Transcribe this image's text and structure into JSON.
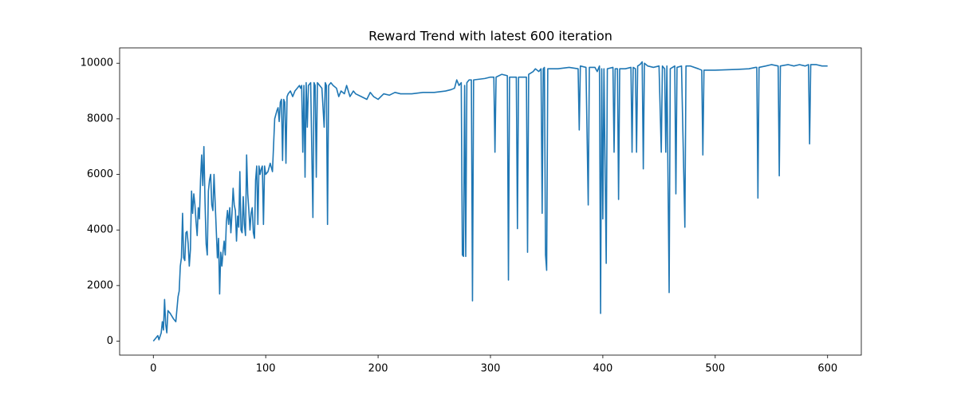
{
  "chart_data": {
    "type": "line",
    "title": "Reward Trend with latest 600 iteration",
    "xlim": [
      -30,
      630
    ],
    "ylim": [
      -502,
      10552
    ],
    "xticks": [
      0,
      100,
      200,
      300,
      400,
      500,
      600
    ],
    "yticks": [
      0,
      2000,
      4000,
      6000,
      8000,
      10000
    ],
    "grid": false,
    "series": [
      {
        "color": "#1f77b4",
        "x": [
          0,
          2,
          4,
          5,
          7,
          8,
          9,
          10,
          11,
          12,
          13,
          15,
          18,
          20,
          22,
          23,
          24,
          25,
          26,
          27,
          28,
          29,
          30,
          31,
          32,
          33,
          34,
          35,
          36,
          37,
          38,
          39,
          40,
          41,
          42,
          43,
          44,
          45,
          46,
          47,
          48,
          49,
          50,
          51,
          52,
          53,
          54,
          55,
          56,
          57,
          58,
          59,
          60,
          61,
          62,
          63,
          64,
          65,
          66,
          67,
          68,
          69,
          70,
          71,
          72,
          73,
          74,
          75,
          76,
          77,
          78,
          79,
          80,
          81,
          82,
          83,
          84,
          85,
          86,
          87,
          88,
          89,
          90,
          91,
          92,
          93,
          94,
          95,
          96,
          97,
          98,
          99,
          100,
          102,
          104,
          106,
          108,
          110,
          111,
          112,
          113,
          114,
          115,
          116,
          117,
          118,
          119,
          120,
          122,
          124,
          126,
          128,
          130,
          131,
          132,
          133,
          134,
          135,
          136,
          137,
          138,
          140,
          142,
          143,
          144,
          145,
          146,
          148,
          150,
          152,
          153,
          154,
          155,
          156,
          158,
          160,
          163,
          165,
          167,
          170,
          172,
          175,
          178,
          180,
          185,
          190,
          193,
          196,
          200,
          205,
          210,
          215,
          220,
          230,
          240,
          250,
          260,
          265,
          268,
          270,
          272,
          274,
          275,
          276,
          277,
          278,
          279,
          281,
          283,
          284,
          285,
          295,
          300,
          303,
          304,
          305,
          310,
          315,
          316,
          317,
          323,
          324,
          325,
          332,
          333,
          334,
          338,
          340,
          343,
          345,
          346,
          347,
          348,
          349,
          350,
          351,
          355,
          360,
          370,
          378,
          379,
          380,
          385,
          387,
          388,
          393,
          395,
          397,
          398,
          399,
          400,
          401,
          403,
          404,
          409,
          410,
          411,
          413,
          414,
          415,
          420,
          425,
          426,
          427,
          429,
          430,
          431,
          433,
          435,
          436,
          437,
          440,
          445,
          450,
          452,
          453,
          455,
          456,
          457,
          459,
          460,
          464,
          465,
          466,
          470,
          473,
          474,
          478,
          485,
          488,
          489,
          490,
          500,
          520,
          530,
          536,
          537,
          538,
          539,
          545,
          550,
          556,
          557,
          558,
          565,
          570,
          575,
          580,
          583,
          584,
          585,
          590,
          595,
          600
        ],
        "values": [
          0,
          100,
          200,
          50,
          300,
          700,
          400,
          1500,
          600,
          300,
          1100,
          1000,
          800,
          700,
          1600,
          1800,
          2700,
          3000,
          4600,
          3000,
          2900,
          3900,
          3950,
          3500,
          2700,
          3300,
          5400,
          4600,
          5300,
          4900,
          4300,
          3800,
          4800,
          4400,
          5800,
          6700,
          5600,
          7000,
          5000,
          3500,
          3100,
          5400,
          5800,
          6000,
          4900,
          4700,
          6000,
          5000,
          4000,
          3000,
          3700,
          1700,
          3200,
          2700,
          3200,
          3600,
          3100,
          4300,
          4700,
          4200,
          4800,
          3900,
          4600,
          5500,
          4900,
          4700,
          3600,
          4500,
          4100,
          6100,
          4000,
          3900,
          5200,
          4200,
          3800,
          6700,
          5300,
          4700,
          4000,
          4600,
          4800,
          3900,
          3700,
          5800,
          6300,
          4200,
          6300,
          6000,
          6200,
          6300,
          4200,
          6300,
          6000,
          6100,
          6400,
          6100,
          8000,
          8300,
          8400,
          7900,
          8600,
          8700,
          6500,
          8700,
          8600,
          6400,
          8800,
          8900,
          9000,
          8800,
          9000,
          9100,
          9200,
          9100,
          9200,
          6800,
          9200,
          5900,
          9300,
          7700,
          9200,
          9300,
          4450,
          9300,
          9200,
          5900,
          9300,
          9200,
          9100,
          7700,
          9300,
          9200,
          4200,
          9200,
          9300,
          9200,
          9100,
          8800,
          9000,
          8900,
          9200,
          8800,
          9000,
          8900,
          8800,
          8700,
          8950,
          8800,
          8700,
          8900,
          8850,
          8950,
          8900,
          8900,
          8950,
          8950,
          9000,
          9050,
          9100,
          9400,
          9200,
          9300,
          3100,
          3050,
          9200,
          3050,
          9300,
          9400,
          9400,
          1450,
          9400,
          9450,
          9500,
          9500,
          6800,
          9500,
          9600,
          9550,
          2200,
          9500,
          9500,
          4050,
          9500,
          9500,
          3200,
          9600,
          9700,
          9800,
          9700,
          9800,
          4600,
          9800,
          9850,
          3100,
          2550,
          9800,
          9800,
          9800,
          9850,
          9800,
          7600,
          9900,
          9850,
          4900,
          9850,
          9850,
          9700,
          9900,
          1000,
          9800,
          4400,
          9800,
          2800,
          9800,
          9850,
          6800,
          9800,
          9800,
          5100,
          9800,
          9800,
          9850,
          6800,
          9850,
          9800,
          6800,
          9900,
          9950,
          10050,
          6200,
          10000,
          9900,
          9850,
          9900,
          6800,
          9900,
          9800,
          6800,
          9900,
          1750,
          9800,
          9900,
          5300,
          9850,
          9900,
          4100,
          9900,
          9900,
          9800,
          9750,
          6700,
          9750,
          9750,
          9780,
          9800,
          9850,
          9850,
          5150,
          9850,
          9900,
          9950,
          9900,
          5950,
          9900,
          9950,
          9900,
          9950,
          9900,
          9950,
          7100,
          9950,
          9950,
          9900,
          9900
        ]
      }
    ]
  }
}
